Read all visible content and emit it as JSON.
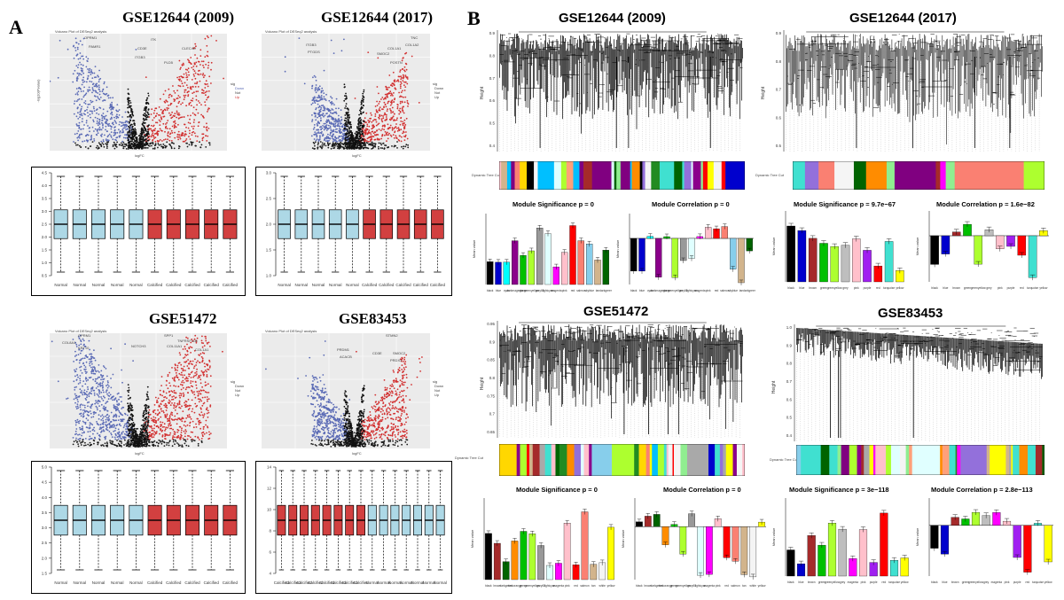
{
  "panel_a": {
    "letter": "A",
    "titles": [
      "GSE12644 (2009)",
      "GSE12644 (2017)",
      "GSE51472",
      "GSE83453"
    ],
    "volcano_header": "Volcano Plot of DESeq2 analysis",
    "volcano_xlabel": "logFC",
    "volcano_ylabel": "-log10(Pvalue)",
    "legend_title": "sig",
    "legend_items": [
      "Down",
      "Not",
      "Up"
    ],
    "gene_labels": {
      "v1": [
        "OPRM1",
        "PAMR1",
        "ITK",
        "CD3E",
        "ITGB3",
        "CLEC4D",
        "PLD5"
      ],
      "v2": [
        "ITGB3",
        "PTGDS",
        "TNC",
        "COL1A2",
        "COL1A1",
        "SMOC2",
        "POSTN"
      ],
      "v3": [
        "OPRM1",
        "COL8A1",
        "KRT10",
        "NOTCH3",
        "SPP1",
        "TNFRSF11B",
        "COL11A1",
        "COL1A1"
      ],
      "v4": [
        "STMN2",
        "PRDM1",
        "ACACB",
        "CD3E",
        "SMOC2",
        "PRDX1"
      ]
    },
    "box_labels": {
      "b1": [
        "Normal",
        "Normal",
        "Normal",
        "Normal",
        "Normal",
        "Calcified",
        "Calcified",
        "Calcified",
        "Calcified",
        "Calcified"
      ],
      "b2": [
        "Normal",
        "Normal",
        "Normal",
        "Normal",
        "Normal",
        "Calcified",
        "Calcified",
        "Calcified",
        "Calcified",
        "Calcified"
      ],
      "b3": [
        "Normal",
        "Normal",
        "Normal",
        "Normal",
        "Normal",
        "Calcified",
        "Calcified",
        "Calcified",
        "Calcified",
        "Calcified"
      ],
      "b4": [
        "Calcified",
        "Calcified",
        "Calcified",
        "Calcified",
        "Calcified",
        "Calcified",
        "Calcified",
        "Calcified",
        "Normal",
        "Normal",
        "Normal",
        "Normal",
        "Normal",
        "Normal",
        "Normal"
      ]
    },
    "box_yticks": {
      "b1": [
        "4.5",
        "4.0",
        "3.5",
        "3.0",
        "2.5",
        "2.0",
        "1.5",
        "1.0",
        "0.5"
      ],
      "b2": [
        "3.0",
        "2.5",
        "2.0",
        "1.5",
        "1.0"
      ],
      "b3": [
        "5.0",
        "4.5",
        "4.0",
        "3.5",
        "3.0",
        "2.5",
        "2.0",
        "1.5"
      ],
      "b4": [
        "14",
        "12",
        "10",
        "8",
        "6",
        "4"
      ]
    }
  },
  "panel_b": {
    "letter": "B",
    "titles": [
      "GSE12644 (2009)",
      "GSE12644 (2017)",
      "GSE51472",
      "GSE83453"
    ],
    "dendro_ylabel": "Height",
    "tree_cut_label": "Dynamic Tree Cut",
    "bar_ylabel": "Mean value",
    "sig_titles": [
      "Module Significance  p = 0",
      "Module Significance  p = 9.7e−67",
      "Module Significance  p = 0",
      "Module Significance  p = 3e−118"
    ],
    "corr_titles": [
      "Module Correlation  p = 0",
      "Module Correlation  p = 1.6e−82",
      "Module Correlation  p = 0",
      "Module Correlation  p = 2.8e−113"
    ],
    "module_names": {
      "m1": [
        "black",
        "blue",
        "cyan",
        "darkmagenta",
        "green",
        "greenyellow",
        "grey60",
        "lightcyan",
        "magenta",
        "pink",
        "red",
        "salmon",
        "skyblue",
        "tan",
        "darkgreen"
      ],
      "m2": [
        "black",
        "blue",
        "brown",
        "green",
        "greenyellow",
        "grey",
        "pink",
        "purple",
        "red",
        "turquoise",
        "yellow"
      ],
      "m3": [
        "black",
        "brown",
        "darkgreen",
        "darkorange",
        "green",
        "greenyellow",
        "grey60",
        "lightcyan",
        "magenta",
        "pink",
        "red",
        "salmon",
        "tan",
        "white",
        "yellow"
      ],
      "m4": [
        "black",
        "blue",
        "brown",
        "green",
        "greenyellow",
        "grey",
        "magenta",
        "pink",
        "purple",
        "red",
        "turquoise",
        "yellow"
      ]
    }
  }
}
